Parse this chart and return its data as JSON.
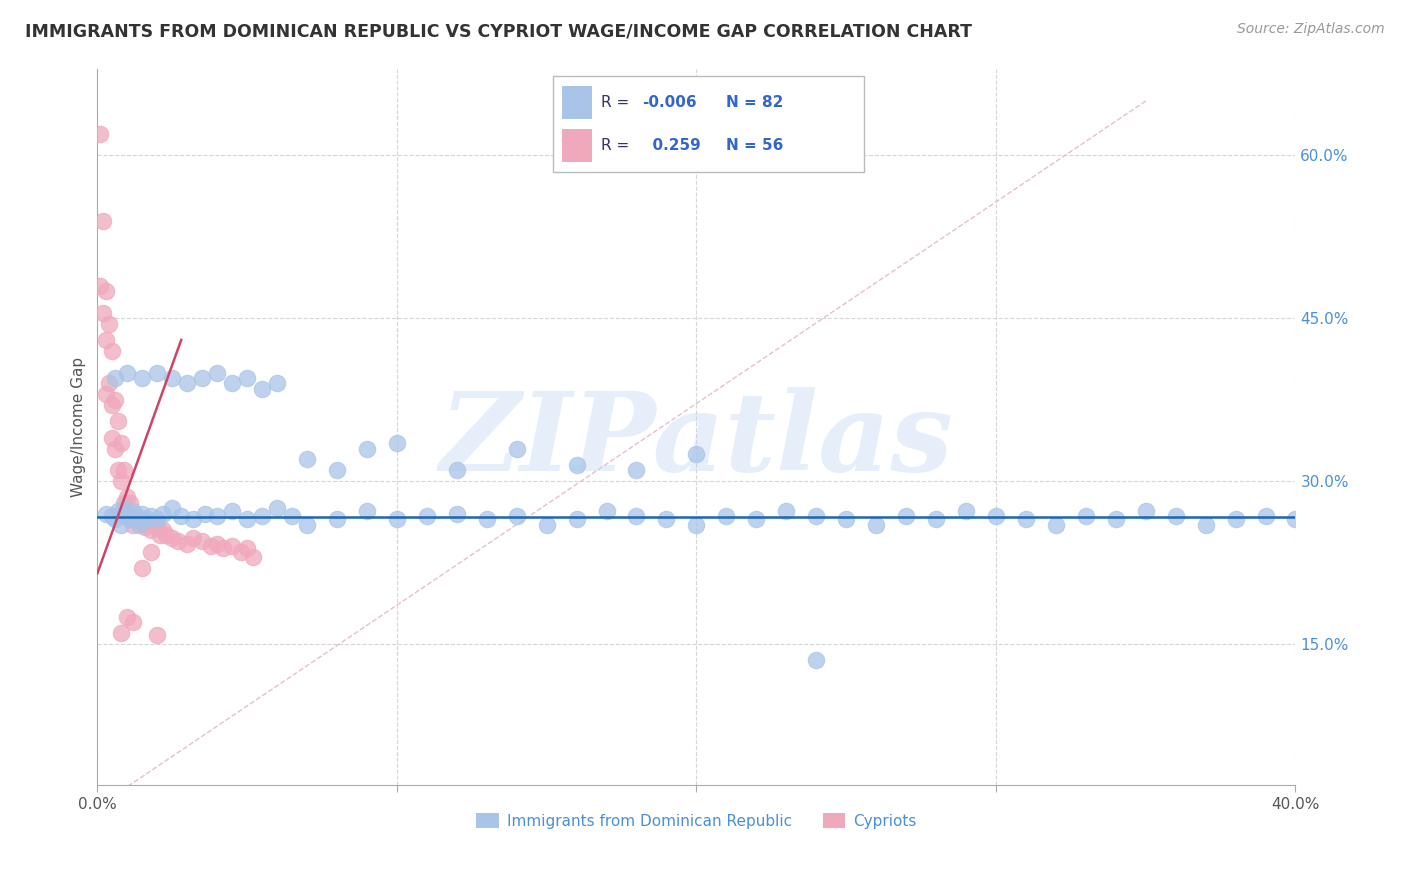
{
  "title": "IMMIGRANTS FROM DOMINICAN REPUBLIC VS CYPRIOT WAGE/INCOME GAP CORRELATION CHART",
  "source_text": "Source: ZipAtlas.com",
  "ylabel": "Wage/Income Gap",
  "xlim": [
    0.0,
    0.4
  ],
  "ylim": [
    0.02,
    0.68
  ],
  "xtick_positions": [
    0.0,
    0.1,
    0.2,
    0.3,
    0.4
  ],
  "xticklabels": [
    "0.0%",
    "",
    "",
    "",
    "40.0%"
  ],
  "ytick_positions": [
    0.15,
    0.3,
    0.45,
    0.6
  ],
  "yticklabels": [
    "15.0%",
    "30.0%",
    "45.0%",
    "60.0%"
  ],
  "blue_color": "#a8c4e8",
  "pink_color": "#f0a8bb",
  "trend_blue_color": "#1a66b3",
  "trend_pink_color": "#cc4466",
  "diag_color": "#e0b0c0",
  "watermark": "ZIPatlas",
  "blue_x": [
    0.003,
    0.005,
    0.006,
    0.007,
    0.008,
    0.009,
    0.01,
    0.011,
    0.012,
    0.013,
    0.014,
    0.015,
    0.016,
    0.018,
    0.02,
    0.022,
    0.025,
    0.028,
    0.032,
    0.036,
    0.04,
    0.045,
    0.05,
    0.055,
    0.06,
    0.065,
    0.07,
    0.08,
    0.09,
    0.1,
    0.11,
    0.12,
    0.13,
    0.14,
    0.15,
    0.16,
    0.17,
    0.18,
    0.19,
    0.2,
    0.21,
    0.22,
    0.23,
    0.24,
    0.25,
    0.26,
    0.27,
    0.28,
    0.29,
    0.3,
    0.31,
    0.32,
    0.33,
    0.34,
    0.35,
    0.36,
    0.37,
    0.38,
    0.39,
    0.4,
    0.006,
    0.01,
    0.015,
    0.02,
    0.025,
    0.03,
    0.035,
    0.04,
    0.045,
    0.05,
    0.055,
    0.06,
    0.07,
    0.08,
    0.09,
    0.1,
    0.12,
    0.14,
    0.16,
    0.18,
    0.2,
    0.24
  ],
  "blue_y": [
    0.27,
    0.268,
    0.265,
    0.272,
    0.26,
    0.275,
    0.268,
    0.265,
    0.272,
    0.268,
    0.26,
    0.27,
    0.265,
    0.268,
    0.265,
    0.27,
    0.275,
    0.268,
    0.265,
    0.27,
    0.268,
    0.272,
    0.265,
    0.268,
    0.275,
    0.268,
    0.26,
    0.265,
    0.272,
    0.265,
    0.268,
    0.27,
    0.265,
    0.268,
    0.26,
    0.265,
    0.272,
    0.268,
    0.265,
    0.26,
    0.268,
    0.265,
    0.272,
    0.268,
    0.265,
    0.26,
    0.268,
    0.265,
    0.272,
    0.268,
    0.265,
    0.26,
    0.268,
    0.265,
    0.272,
    0.268,
    0.26,
    0.265,
    0.268,
    0.265,
    0.395,
    0.4,
    0.395,
    0.4,
    0.395,
    0.39,
    0.395,
    0.4,
    0.39,
    0.395,
    0.385,
    0.39,
    0.32,
    0.31,
    0.33,
    0.335,
    0.31,
    0.33,
    0.315,
    0.31,
    0.325,
    0.135
  ],
  "pink_x": [
    0.001,
    0.001,
    0.002,
    0.002,
    0.003,
    0.003,
    0.003,
    0.004,
    0.004,
    0.005,
    0.005,
    0.005,
    0.006,
    0.006,
    0.007,
    0.007,
    0.008,
    0.008,
    0.008,
    0.009,
    0.009,
    0.01,
    0.01,
    0.011,
    0.011,
    0.012,
    0.012,
    0.013,
    0.014,
    0.015,
    0.016,
    0.017,
    0.018,
    0.019,
    0.02,
    0.021,
    0.022,
    0.023,
    0.025,
    0.027,
    0.03,
    0.032,
    0.035,
    0.038,
    0.04,
    0.042,
    0.045,
    0.048,
    0.05,
    0.052,
    0.008,
    0.01,
    0.012,
    0.015,
    0.018,
    0.02
  ],
  "pink_y": [
    0.62,
    0.48,
    0.54,
    0.455,
    0.475,
    0.43,
    0.38,
    0.445,
    0.39,
    0.42,
    0.37,
    0.34,
    0.375,
    0.33,
    0.355,
    0.31,
    0.335,
    0.3,
    0.27,
    0.31,
    0.28,
    0.285,
    0.27,
    0.28,
    0.265,
    0.27,
    0.26,
    0.268,
    0.262,
    0.265,
    0.258,
    0.262,
    0.255,
    0.26,
    0.258,
    0.25,
    0.255,
    0.25,
    0.248,
    0.245,
    0.242,
    0.248,
    0.245,
    0.24,
    0.242,
    0.238,
    0.24,
    0.235,
    0.238,
    0.23,
    0.16,
    0.175,
    0.17,
    0.22,
    0.235,
    0.158
  ],
  "pink_trend_x": [
    0.0,
    0.028
  ],
  "pink_trend_y": [
    0.215,
    0.43
  ],
  "blue_trend_y": 0.267
}
